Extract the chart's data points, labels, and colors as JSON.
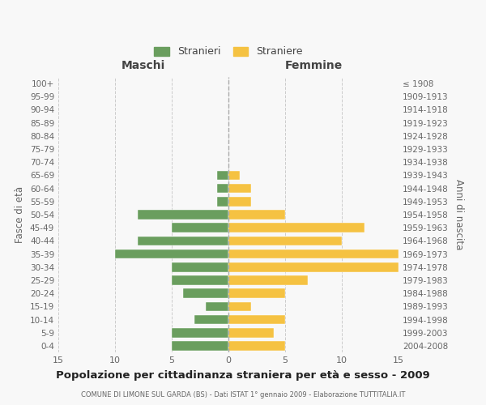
{
  "age_groups": [
    "100+",
    "95-99",
    "90-94",
    "85-89",
    "80-84",
    "75-79",
    "70-74",
    "65-69",
    "60-64",
    "55-59",
    "50-54",
    "45-49",
    "40-44",
    "35-39",
    "30-34",
    "25-29",
    "20-24",
    "15-19",
    "10-14",
    "5-9",
    "0-4"
  ],
  "birth_years": [
    "≤ 1908",
    "1909-1913",
    "1914-1918",
    "1919-1923",
    "1924-1928",
    "1929-1933",
    "1934-1938",
    "1939-1943",
    "1944-1948",
    "1949-1953",
    "1954-1958",
    "1959-1963",
    "1964-1968",
    "1969-1973",
    "1974-1978",
    "1979-1983",
    "1984-1988",
    "1989-1993",
    "1994-1998",
    "1999-2003",
    "2004-2008"
  ],
  "maschi": [
    0,
    0,
    0,
    0,
    0,
    0,
    0,
    1,
    1,
    1,
    8,
    5,
    8,
    10,
    5,
    5,
    4,
    2,
    3,
    5,
    5
  ],
  "femmine": [
    0,
    0,
    0,
    0,
    0,
    0,
    0,
    1,
    2,
    2,
    5,
    12,
    10,
    15,
    15,
    7,
    5,
    2,
    5,
    4,
    5
  ],
  "maschi_color": "#6a9e5e",
  "femmine_color": "#f5c242",
  "background_color": "#f8f8f8",
  "grid_color": "#cccccc",
  "title": "Popolazione per cittadinanza straniera per età e sesso - 2009",
  "subtitle": "COMUNE DI LIMONE SUL GARDA (BS) - Dati ISTAT 1° gennaio 2009 - Elaborazione TUTTITALIA.IT",
  "xlabel_left": "Maschi",
  "xlabel_right": "Femmine",
  "ylabel_left": "Fasce di età",
  "ylabel_right": "Anni di nascita",
  "legend_stranieri": "Stranieri",
  "legend_straniere": "Straniere",
  "xlim": 15
}
